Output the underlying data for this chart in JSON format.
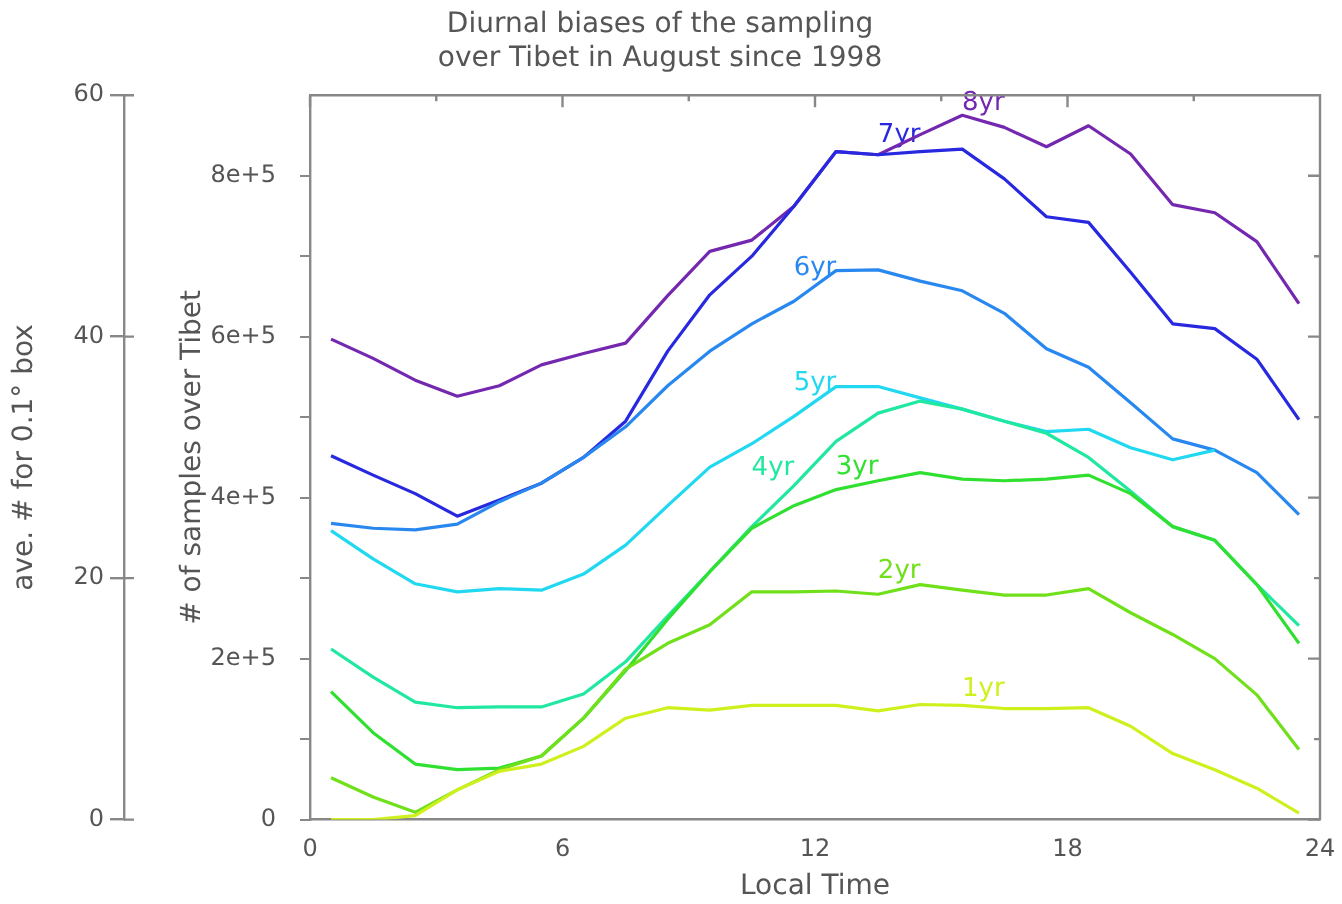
{
  "chart_data": {
    "type": "line",
    "title": "Diurnal biases of the sampling\nover Tibet in August since 1998",
    "xlabel": "Local Time",
    "ylabel": "# of samples over Tibet",
    "y2label": "ave. # for 0.1° box",
    "marker": "none",
    "x": [
      0.5,
      1.5,
      2.5,
      3.5,
      4.5,
      5.5,
      6.5,
      7.5,
      8.5,
      9.5,
      10.5,
      11.5,
      12.5,
      13.5,
      14.5,
      15.5,
      16.5,
      17.5,
      18.5,
      19.5,
      20.5,
      21.5,
      22.5,
      23.5
    ],
    "xlim": [
      0,
      24
    ],
    "xticks": [
      0,
      {
        "value": 3,
        "label": null
      },
      6,
      {
        "value": 9,
        "label": null
      },
      12,
      {
        "value": 15,
        "label": null
      },
      18,
      {
        "value": 21,
        "label": null
      },
      24
    ],
    "ylim": [
      0,
      900000
    ],
    "yticks": [
      {
        "value": 0,
        "label": "0"
      },
      {
        "value": 100000,
        "label": null
      },
      {
        "value": 200000,
        "label": "2e+5"
      },
      {
        "value": 300000,
        "label": null
      },
      {
        "value": 400000,
        "label": "4e+5"
      },
      {
        "value": 500000,
        "label": null
      },
      {
        "value": 600000,
        "label": "6e+5"
      },
      {
        "value": 700000,
        "label": null
      },
      {
        "value": 800000,
        "label": "8e+5"
      }
    ],
    "y2lim": [
      0,
      60
    ],
    "y2ticks": [
      0,
      20,
      40,
      60
    ],
    "series": [
      {
        "name": "1yr",
        "color": "#d0f01e",
        "values": [
          0,
          0,
          5000,
          37000,
          60000,
          69000,
          91000,
          126000,
          139000,
          136000,
          142000,
          142000,
          142000,
          135000,
          143000,
          142000,
          138000,
          138000,
          139000,
          116000,
          82000,
          62000,
          39000,
          8000
        ]
      },
      {
        "name": "2yr",
        "color": "#70e01a",
        "values": [
          52000,
          28000,
          9000,
          37000,
          62000,
          79000,
          126000,
          187000,
          219000,
          242000,
          283000,
          283000,
          284000,
          280000,
          292000,
          285000,
          279000,
          279000,
          287000,
          257000,
          230000,
          200000,
          155000,
          87000
        ]
      },
      {
        "name": "3yr",
        "color": "#30e030",
        "values": [
          159000,
          108000,
          69000,
          62000,
          64000,
          79000,
          126000,
          185000,
          249000,
          308000,
          362000,
          390000,
          410000,
          421000,
          431000,
          423000,
          421000,
          423000,
          428000,
          405000,
          364000,
          347000,
          292000,
          219000
        ]
      },
      {
        "name": "4yr",
        "color": "#20e8a0",
        "values": [
          212000,
          177000,
          146000,
          139000,
          140000,
          140000,
          156000,
          196000,
          253000,
          308000,
          364000,
          415000,
          470000,
          505000,
          520000,
          510000,
          495000,
          480000,
          450000,
          408000,
          364000,
          347000,
          292000,
          241000
        ]
      },
      {
        "name": "5yr",
        "color": "#20d8f0",
        "values": [
          359000,
          324000,
          293000,
          283000,
          287000,
          285000,
          305000,
          341000,
          390000,
          438000,
          467000,
          501000,
          538000,
          538000,
          524000,
          510000,
          495000,
          482000,
          485000,
          462000,
          447000,
          459000,
          null,
          null
        ]
      },
      {
        "name": "6yr",
        "color": "#2888f0",
        "values": [
          368000,
          362000,
          360000,
          367000,
          395000,
          418000,
          450000,
          488000,
          539000,
          582000,
          616000,
          644000,
          682000,
          683000,
          669000,
          657000,
          629000,
          585000,
          562000,
          518000,
          473000,
          459000,
          431000,
          379000
        ]
      },
      {
        "name": "7yr",
        "color": "#2828e0",
        "values": [
          452000,
          428000,
          405000,
          377000,
          397000,
          418000,
          450000,
          495000,
          582000,
          652000,
          700000,
          762000,
          830000,
          826000,
          830000,
          833000,
          796000,
          749000,
          742000,
          680000,
          616000,
          610000,
          572000,
          497000
        ]
      },
      {
        "name": "8yr",
        "color": "#7428b0",
        "values": [
          597000,
          573000,
          546000,
          526000,
          539000,
          565000,
          579000,
          592000,
          651000,
          706000,
          720000,
          762000,
          830000,
          826000,
          851000,
          875000,
          860000,
          836000,
          862000,
          827000,
          764000,
          754000,
          718000,
          641000
        ]
      }
    ]
  }
}
